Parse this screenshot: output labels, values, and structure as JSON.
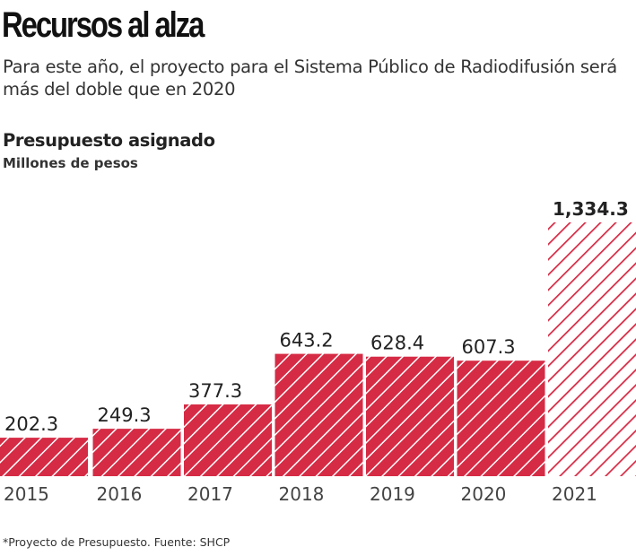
{
  "title": "Recursos al alza",
  "subtitle": "Para este año, el proyecto para el Sistema Público de Radiodifusión será más del doble que en 2020",
  "footnote": "*Proyecto de Presupuesto. Fuente: SHCP",
  "colors": {
    "bar": "#d62b45",
    "stripe": "#ffffff"
  },
  "chart_data": {
    "type": "bar",
    "title": "Presupuesto asignado",
    "ylabel": "Millones de pesos",
    "categories": [
      "2015",
      "2016",
      "2017",
      "2018",
      "2019",
      "2020",
      "2021"
    ],
    "values": [
      202.3,
      249.3,
      377.3,
      643.2,
      628.4,
      607.3,
      1334.3
    ],
    "value_labels": [
      "202.3",
      "249.3",
      "377.3",
      "643.2",
      "628.4",
      "607.3",
      "1,334.3"
    ],
    "projected": [
      false,
      false,
      false,
      false,
      false,
      false,
      true
    ],
    "ylim": [
      0,
      1334.3
    ],
    "grid": false
  }
}
